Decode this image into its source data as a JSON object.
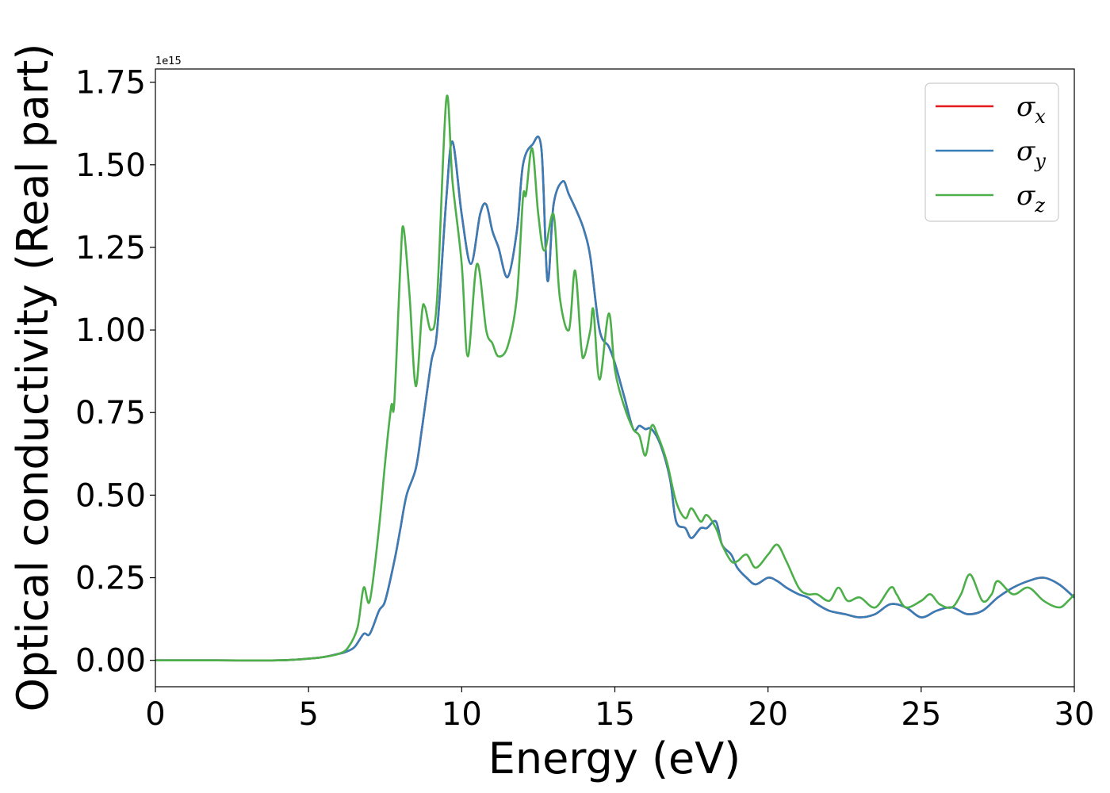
{
  "chart_data": {
    "type": "line",
    "xlabel": "Energy (eV)",
    "ylabel": "Optical conductivity (Real part)",
    "y_offset_label": "1e15",
    "xlim": [
      0,
      30
    ],
    "ylim": [
      -0.08,
      1.79
    ],
    "x_ticks": [
      0,
      5,
      10,
      15,
      20,
      25,
      30
    ],
    "x_tick_labels": [
      "0",
      "5",
      "10",
      "15",
      "20",
      "25",
      "30"
    ],
    "y_ticks": [
      0.0,
      0.25,
      0.5,
      0.75,
      1.0,
      1.25,
      1.5,
      1.75
    ],
    "y_tick_labels": [
      "0.00",
      "0.25",
      "0.50",
      "0.75",
      "1.00",
      "1.25",
      "1.50",
      "1.75"
    ],
    "grid": false,
    "legend_position": "upper right",
    "series": [
      {
        "name": "σx",
        "symbol": "σ",
        "subscript": "x",
        "color": "#e41a1c",
        "x": [
          0,
          2,
          4,
          5,
          5.5,
          6,
          6.2,
          6.5,
          6.8,
          7,
          7.3,
          7.5,
          7.8,
          8,
          8.2,
          8.5,
          8.7,
          9,
          9.2,
          9.5,
          9.7,
          10,
          10.3,
          10.6,
          10.8,
          11,
          11.2,
          11.5,
          11.8,
          12,
          12.3,
          12.6,
          12.8,
          13,
          13.3,
          13.5,
          13.8,
          14,
          14.2,
          14.5,
          14.8,
          15,
          15.3,
          15.6,
          15.8,
          16,
          16.2,
          16.5,
          16.8,
          17,
          17.3,
          17.5,
          17.8,
          18,
          18.3,
          18.5,
          18.8,
          19,
          19.3,
          19.6,
          20,
          20.3,
          20.6,
          21,
          21.3,
          21.6,
          22,
          22.5,
          23,
          23.5,
          24,
          24.5,
          25,
          25.5,
          26,
          26.5,
          27,
          27.5,
          28,
          28.5,
          29,
          29.5,
          30
        ],
        "y": [
          0.0,
          0.0,
          0.0,
          0.005,
          0.01,
          0.02,
          0.025,
          0.04,
          0.08,
          0.08,
          0.15,
          0.18,
          0.3,
          0.4,
          0.5,
          0.58,
          0.7,
          0.9,
          1.0,
          1.4,
          1.57,
          1.35,
          1.2,
          1.35,
          1.38,
          1.3,
          1.25,
          1.16,
          1.3,
          1.5,
          1.56,
          1.55,
          1.15,
          1.38,
          1.45,
          1.41,
          1.35,
          1.3,
          1.22,
          1.0,
          0.95,
          0.9,
          0.8,
          0.7,
          0.71,
          0.7,
          0.7,
          0.65,
          0.55,
          0.42,
          0.4,
          0.37,
          0.4,
          0.4,
          0.42,
          0.35,
          0.32,
          0.28,
          0.25,
          0.23,
          0.25,
          0.24,
          0.22,
          0.2,
          0.19,
          0.17,
          0.15,
          0.14,
          0.13,
          0.14,
          0.17,
          0.16,
          0.13,
          0.15,
          0.16,
          0.14,
          0.15,
          0.19,
          0.22,
          0.24,
          0.25,
          0.23,
          0.19
        ]
      },
      {
        "name": "σy",
        "symbol": "σ",
        "subscript": "y",
        "color": "#377eb8",
        "x": [
          0,
          2,
          4,
          5,
          5.5,
          6,
          6.2,
          6.5,
          6.8,
          7,
          7.3,
          7.5,
          7.8,
          8,
          8.2,
          8.5,
          8.7,
          9,
          9.2,
          9.5,
          9.7,
          10,
          10.3,
          10.6,
          10.8,
          11,
          11.2,
          11.5,
          11.8,
          12,
          12.3,
          12.6,
          12.8,
          13,
          13.3,
          13.5,
          13.8,
          14,
          14.2,
          14.5,
          14.8,
          15,
          15.3,
          15.6,
          15.8,
          16,
          16.2,
          16.5,
          16.8,
          17,
          17.3,
          17.5,
          17.8,
          18,
          18.3,
          18.5,
          18.8,
          19,
          19.3,
          19.6,
          20,
          20.3,
          20.6,
          21,
          21.3,
          21.6,
          22,
          22.5,
          23,
          23.5,
          24,
          24.5,
          25,
          25.5,
          26,
          26.5,
          27,
          27.5,
          28,
          28.5,
          29,
          29.5,
          30
        ],
        "y": [
          0.0,
          0.0,
          0.0,
          0.005,
          0.01,
          0.02,
          0.025,
          0.04,
          0.08,
          0.08,
          0.15,
          0.18,
          0.3,
          0.4,
          0.5,
          0.58,
          0.7,
          0.9,
          1.0,
          1.4,
          1.57,
          1.35,
          1.2,
          1.35,
          1.38,
          1.3,
          1.25,
          1.16,
          1.3,
          1.5,
          1.56,
          1.55,
          1.15,
          1.38,
          1.45,
          1.41,
          1.35,
          1.3,
          1.22,
          1.0,
          0.95,
          0.9,
          0.8,
          0.7,
          0.71,
          0.7,
          0.7,
          0.65,
          0.55,
          0.42,
          0.4,
          0.37,
          0.4,
          0.4,
          0.42,
          0.35,
          0.32,
          0.28,
          0.25,
          0.23,
          0.25,
          0.24,
          0.22,
          0.2,
          0.19,
          0.17,
          0.15,
          0.14,
          0.13,
          0.14,
          0.17,
          0.16,
          0.13,
          0.15,
          0.16,
          0.14,
          0.15,
          0.19,
          0.22,
          0.24,
          0.25,
          0.23,
          0.19
        ]
      },
      {
        "name": "σz",
        "symbol": "σ",
        "subscript": "z",
        "color": "#4daf4a",
        "x": [
          0,
          2,
          4,
          5,
          5.5,
          6,
          6.3,
          6.6,
          6.8,
          7,
          7.3,
          7.5,
          7.7,
          7.8,
          8,
          8.1,
          8.3,
          8.5,
          8.7,
          8.8,
          9,
          9.2,
          9.5,
          9.7,
          10,
          10.2,
          10.5,
          10.8,
          11,
          11.2,
          11.5,
          11.8,
          12,
          12.1,
          12.3,
          12.5,
          12.7,
          13,
          13.2,
          13.5,
          13.7,
          13.9,
          14,
          14.2,
          14.3,
          14.5,
          14.8,
          15,
          15.3,
          15.6,
          15.8,
          16,
          16.2,
          16.4,
          16.7,
          17,
          17.3,
          17.5,
          17.8,
          18,
          18.3,
          18.5,
          18.8,
          19,
          19.3,
          19.6,
          20,
          20.3,
          20.6,
          21,
          21.3,
          21.6,
          22,
          22.3,
          22.6,
          23,
          23.5,
          24,
          24.2,
          24.5,
          25,
          25.3,
          25.6,
          26,
          26.3,
          26.6,
          27,
          27.3,
          27.5,
          28,
          28.5,
          29,
          29.5,
          29.8,
          30
        ],
        "y": [
          0.0,
          0.0,
          0.0,
          0.005,
          0.01,
          0.02,
          0.04,
          0.1,
          0.22,
          0.18,
          0.4,
          0.6,
          0.77,
          0.78,
          1.2,
          1.31,
          1.1,
          0.83,
          1.05,
          1.07,
          1.0,
          1.1,
          1.7,
          1.45,
          1.2,
          0.92,
          1.2,
          1.0,
          0.96,
          0.92,
          0.95,
          1.1,
          1.4,
          1.41,
          1.55,
          1.35,
          1.24,
          1.35,
          1.1,
          1.0,
          1.18,
          0.95,
          0.92,
          1.0,
          1.06,
          0.85,
          1.05,
          0.88,
          0.77,
          0.7,
          0.68,
          0.62,
          0.71,
          0.68,
          0.6,
          0.48,
          0.43,
          0.46,
          0.42,
          0.44,
          0.4,
          0.35,
          0.3,
          0.3,
          0.32,
          0.28,
          0.32,
          0.35,
          0.3,
          0.22,
          0.2,
          0.2,
          0.18,
          0.22,
          0.18,
          0.19,
          0.16,
          0.22,
          0.2,
          0.16,
          0.18,
          0.2,
          0.17,
          0.16,
          0.2,
          0.26,
          0.18,
          0.2,
          0.24,
          0.2,
          0.22,
          0.18,
          0.16,
          0.18,
          0.2
        ]
      }
    ]
  }
}
